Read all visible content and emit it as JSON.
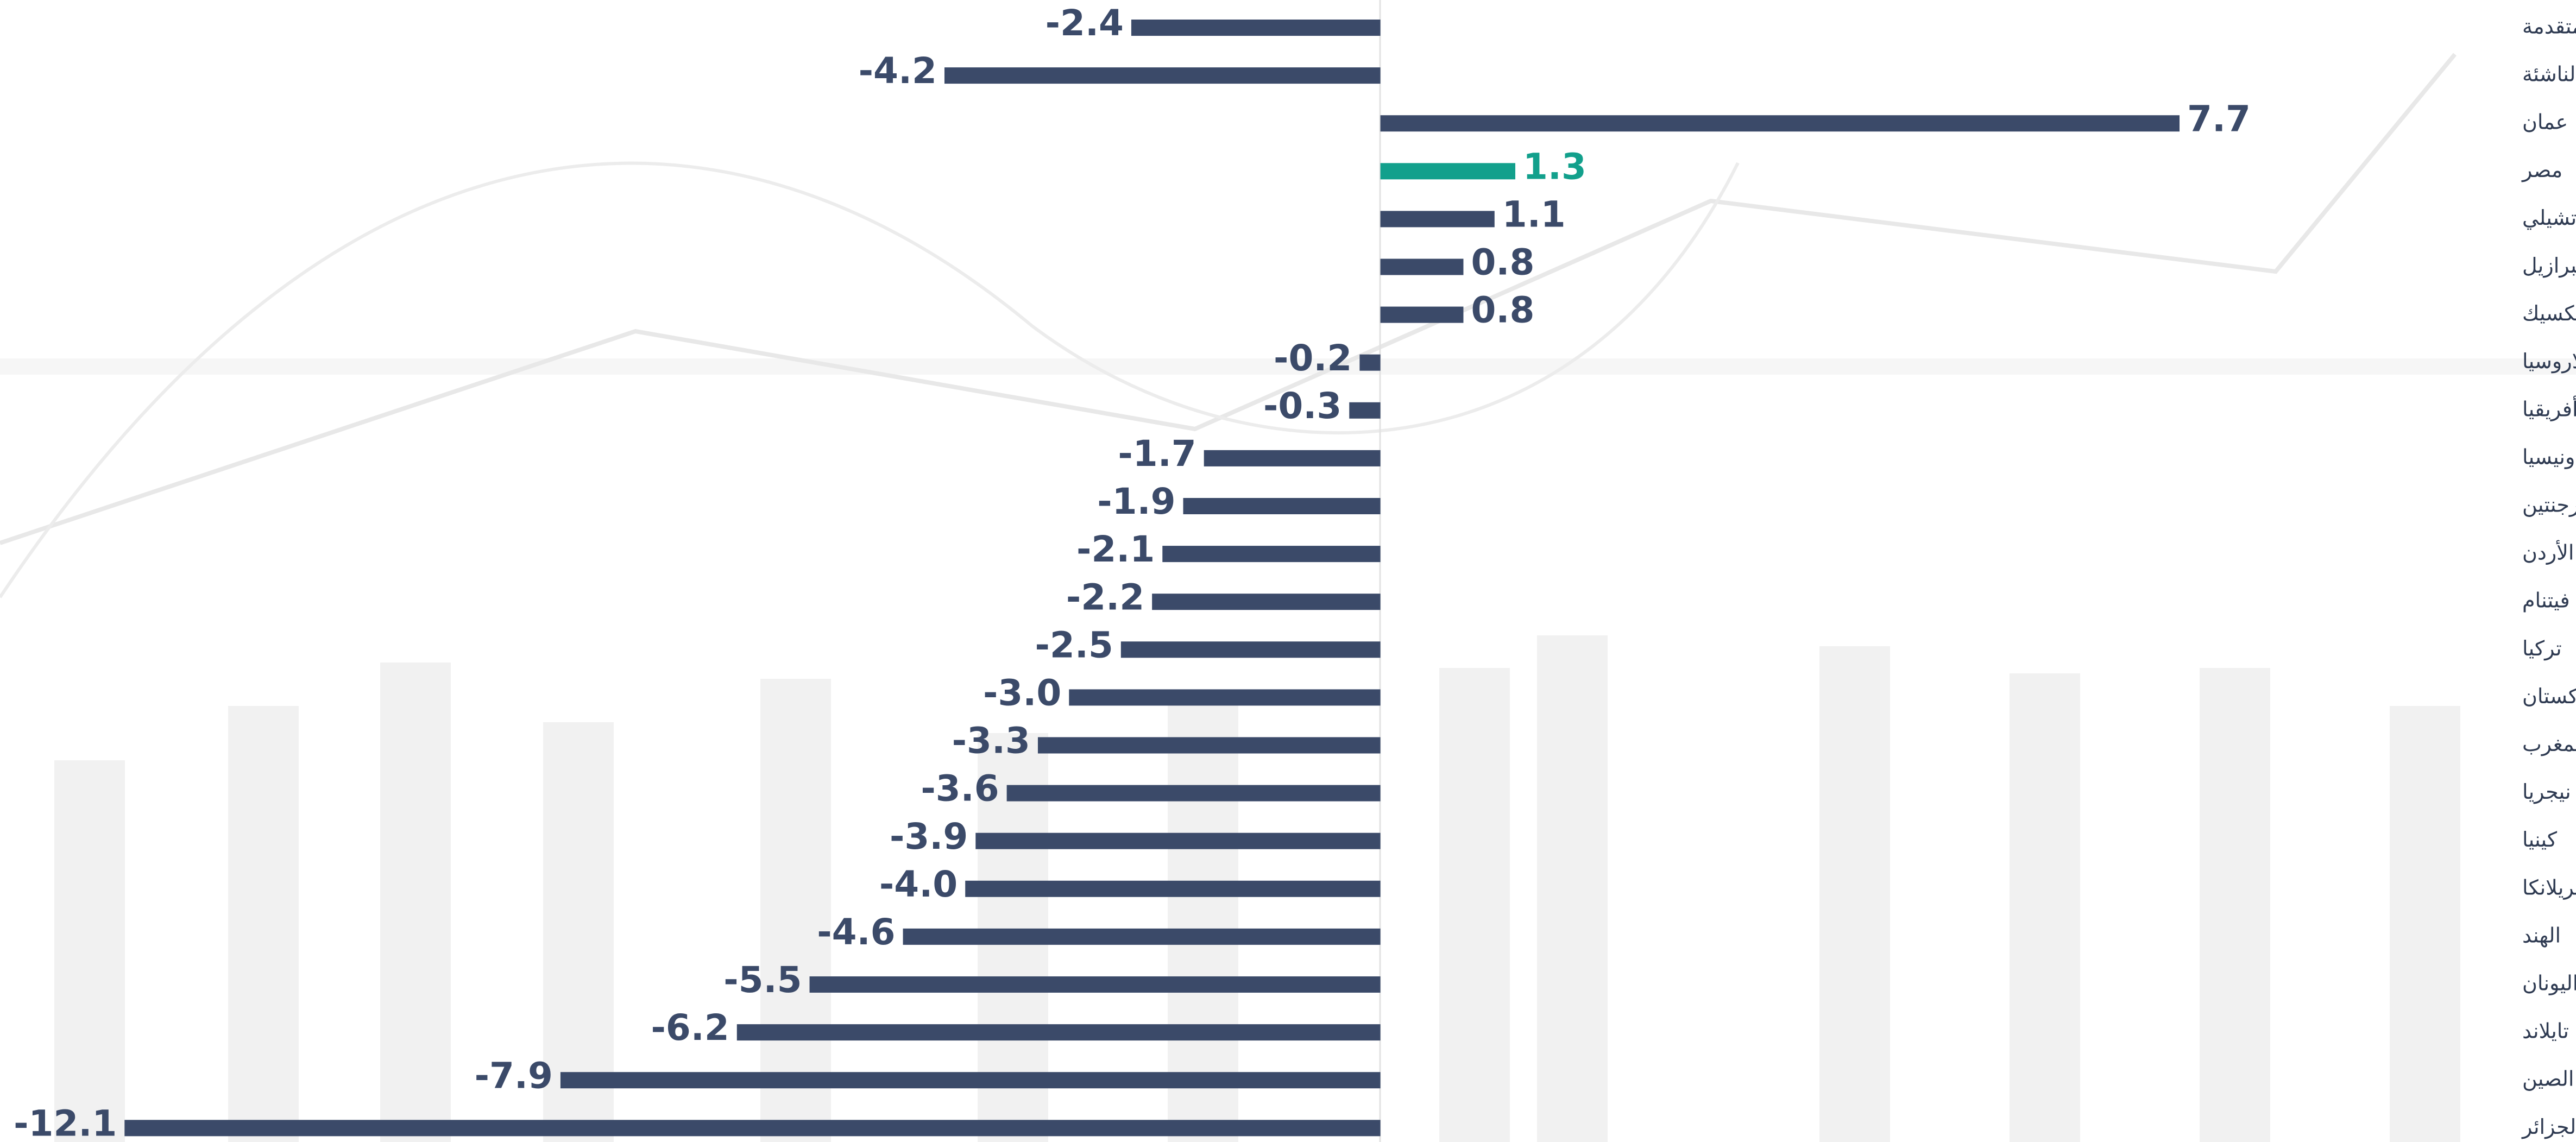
{
  "chart_data": {
    "type": "bar",
    "orientation": "horizontal",
    "categories": [
      "الدول المتقدمة",
      "الدول الناشئة",
      "عمان",
      "مصر",
      "تشيلي",
      "البرازيل",
      "المكسيك",
      "بلاروسيا",
      "جنوب أفريقيا",
      "إندونيسيا",
      "الأرجنتين",
      "الأردن",
      "فيتنام",
      "تركيا",
      "باكستان",
      "المغرب",
      "نيجريا",
      "كينيا",
      "سيريلانكا",
      "الهند",
      "اليونان",
      "تايلاند",
      "الصين",
      "الجزائر"
    ],
    "values": [
      -2.4,
      -4.2,
      7.7,
      1.3,
      1.1,
      0.8,
      0.8,
      -0.2,
      -0.3,
      -1.7,
      -1.9,
      -2.1,
      -2.2,
      -2.5,
      -3.0,
      -3.3,
      -3.6,
      -3.9,
      -4.0,
      -4.6,
      -5.5,
      -6.2,
      -7.9,
      -12.1
    ],
    "value_labels": [
      "-2.4",
      "-4.2",
      "7.7",
      "1.3",
      "1.1",
      "0.8",
      "0.8",
      "-0.2",
      "-0.3",
      "-1.7",
      "-1.9",
      "-2.1",
      "-2.2",
      "-2.5",
      "-3.0",
      "-3.3",
      "-3.6",
      "-3.9",
      "-4.0",
      "-4.6",
      "-5.5",
      "-6.2",
      "-7.9",
      "-12.1"
    ],
    "colors": [
      "#3b4a69",
      "#3b4a69",
      "#3b4a69",
      "#12a08c",
      "#3b4a69",
      "#3b4a69",
      "#3b4a69",
      "#3b4a69",
      "#3b4a69",
      "#3b4a69",
      "#3b4a69",
      "#3b4a69",
      "#3b4a69",
      "#3b4a69",
      "#3b4a69",
      "#3b4a69",
      "#3b4a69",
      "#3b4a69",
      "#3b4a69",
      "#3b4a69",
      "#3b4a69",
      "#3b4a69",
      "#3b4a69",
      "#3b4a69"
    ],
    "xlim": [
      -13.3,
      9.5
    ]
  }
}
